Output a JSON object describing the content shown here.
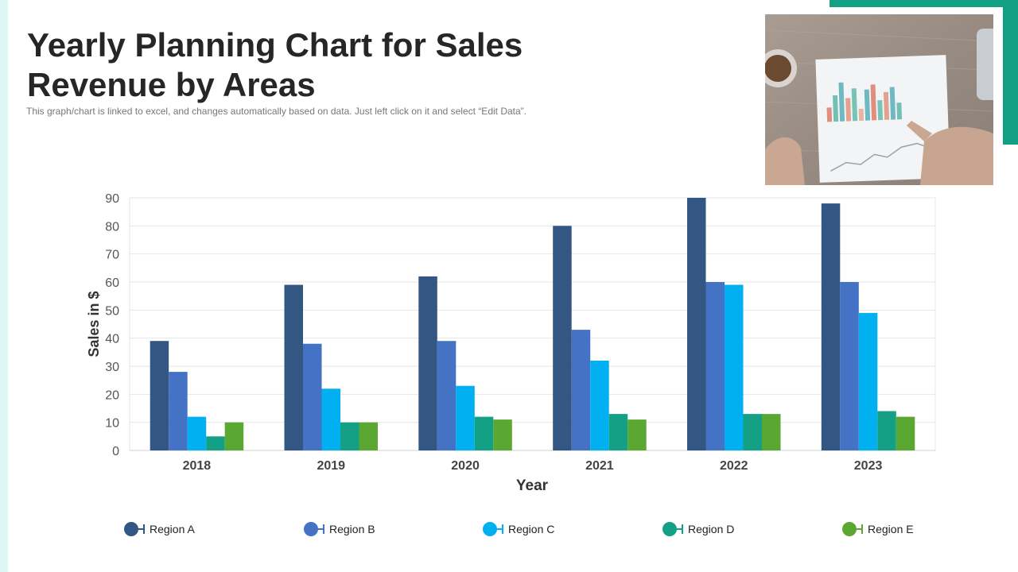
{
  "title": "Yearly Planning Chart for Sales Revenue by Areas",
  "subtitle": "This graph/chart is linked to excel, and changes automatically based on data. Just left click on it and select “Edit Data”.",
  "colors": {
    "accent": "#12a085",
    "accent_light": "#dff7f3",
    "region_a": "#335782",
    "region_b": "#4472c4",
    "region_c": "#00b0f0",
    "region_d": "#13a085",
    "region_e": "#5aa832"
  },
  "photo": {
    "icon": "report-on-table-photo"
  },
  "chart_data": {
    "type": "bar",
    "categories": [
      "2018",
      "2019",
      "2020",
      "2021",
      "2022",
      "2023"
    ],
    "series": [
      {
        "name": "Region A",
        "color": "#335782",
        "values": [
          39,
          59,
          62,
          80,
          90,
          88
        ]
      },
      {
        "name": "Region B",
        "color": "#4472c4",
        "values": [
          28,
          38,
          39,
          43,
          60,
          60
        ]
      },
      {
        "name": "Region C",
        "color": "#00b0f0",
        "values": [
          12,
          22,
          23,
          32,
          59,
          49
        ]
      },
      {
        "name": "Region D",
        "color": "#13a085",
        "values": [
          5,
          10,
          12,
          13,
          13,
          14
        ]
      },
      {
        "name": "Region E",
        "color": "#5aa832",
        "values": [
          10,
          10,
          11,
          11,
          13,
          12
        ]
      }
    ],
    "xlabel": "Year",
    "ylabel": "Sales in $",
    "ylim": [
      0,
      90
    ],
    "yticks": [
      0,
      10,
      20,
      30,
      40,
      50,
      60,
      70,
      80,
      90
    ],
    "grid": true,
    "legend": "bottom"
  }
}
